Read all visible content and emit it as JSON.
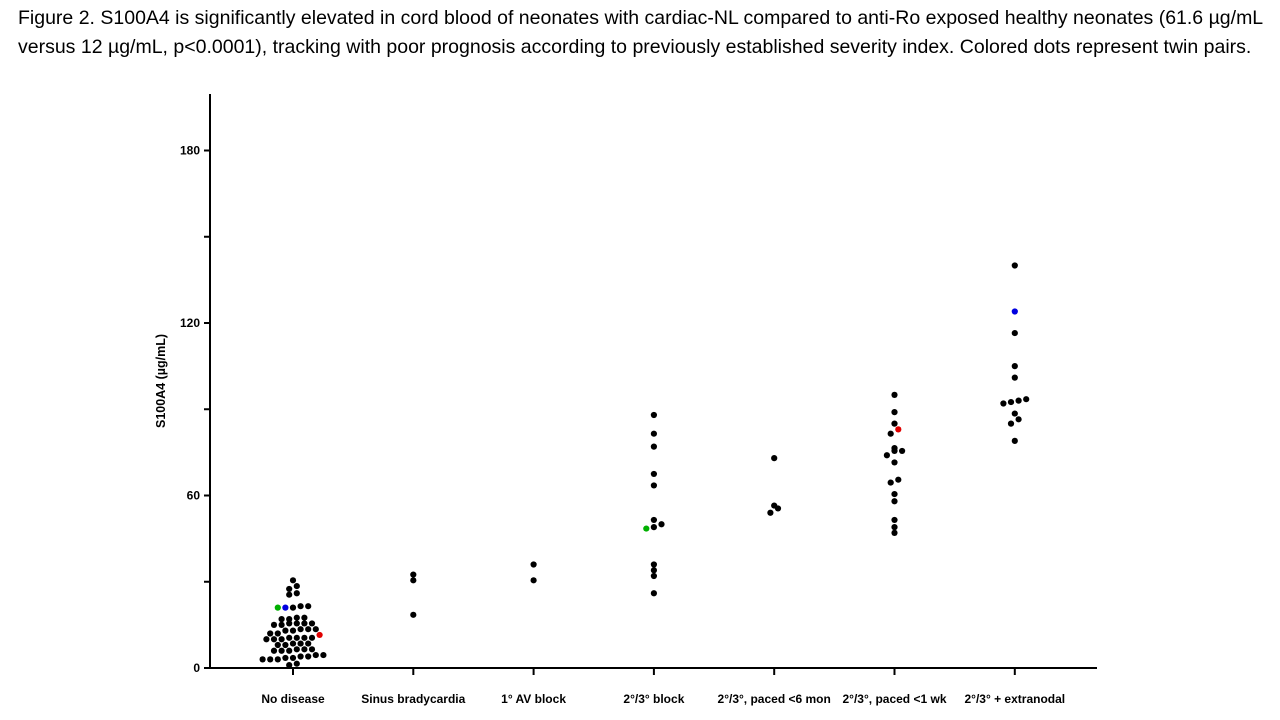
{
  "caption": "Figure 2. S100A4 is significantly elevated in cord blood of neonates with cardiac-NL compared to anti-Ro exposed healthy neonates (61.6 µg/mL versus 12 µg/mL, p<0.0001), tracking with poor prognosis according to previously established severity index. Colored dots represent twin pairs.",
  "chart_data": {
    "type": "scatter",
    "title": "",
    "xlabel": "",
    "ylabel": "S100A4 (µg/mL)",
    "ylim": [
      0,
      200
    ],
    "yticks": [
      0,
      60,
      120,
      180
    ],
    "grid": false,
    "categories": [
      "No disease",
      "Sinus bradycardia",
      "1° AV block",
      "2°/3° block",
      "2°/3°, paced <6 mon",
      "2°/3°, paced <1 wk",
      "2°/3° + extranodal"
    ],
    "colors": {
      "default": "#000000",
      "red": "#e00000",
      "green": "#00b000",
      "blue": "#0000e0"
    },
    "groups": [
      {
        "category": "No disease",
        "points": [
          {
            "y": 30.5
          },
          {
            "y": 28.5
          },
          {
            "y": 27.5
          },
          {
            "y": 26,
            "color": "#000000"
          },
          {
            "y": 25.5
          },
          {
            "y": 21.5
          },
          {
            "y": 21,
            "color": "#00b000"
          },
          {
            "y": 21,
            "color": "#0000e0"
          },
          {
            "y": 21.5
          },
          {
            "y": 21
          },
          {
            "y": 17.5
          },
          {
            "y": 17
          },
          {
            "y": 17.5
          },
          {
            "y": 17
          },
          {
            "y": 15.5
          },
          {
            "y": 15.5
          },
          {
            "y": 15.5
          },
          {
            "y": 15
          },
          {
            "y": 15.5
          },
          {
            "y": 15
          },
          {
            "y": 13.5
          },
          {
            "y": 13
          },
          {
            "y": 13.5
          },
          {
            "y": 13
          },
          {
            "y": 13.5
          },
          {
            "y": 12
          },
          {
            "y": 11.5,
            "color": "#e00000"
          },
          {
            "y": 12
          },
          {
            "y": 10.5
          },
          {
            "y": 10
          },
          {
            "y": 10.5
          },
          {
            "y": 10
          },
          {
            "y": 10.5
          },
          {
            "y": 10
          },
          {
            "y": 10.5
          },
          {
            "y": 8.5
          },
          {
            "y": 8
          },
          {
            "y": 8.5
          },
          {
            "y": 8
          },
          {
            "y": 8.5
          },
          {
            "y": 6.5
          },
          {
            "y": 6
          },
          {
            "y": 6.5
          },
          {
            "y": 6
          },
          {
            "y": 6.5
          },
          {
            "y": 6
          },
          {
            "y": 4.5
          },
          {
            "y": 4
          },
          {
            "y": 4.5
          },
          {
            "y": 4
          },
          {
            "y": 3
          },
          {
            "y": 3.5
          },
          {
            "y": 3
          },
          {
            "y": 3
          },
          {
            "y": 3.5
          },
          {
            "y": 1.5
          },
          {
            "y": 1
          }
        ]
      },
      {
        "category": "Sinus bradycardia",
        "points": [
          {
            "y": 32.5
          },
          {
            "y": 30.5
          },
          {
            "y": 18.5
          }
        ]
      },
      {
        "category": "1° AV block",
        "points": [
          {
            "y": 36
          },
          {
            "y": 30.5
          }
        ]
      },
      {
        "category": "2°/3° block",
        "points": [
          {
            "y": 88
          },
          {
            "y": 81.5
          },
          {
            "y": 77
          },
          {
            "y": 67.5
          },
          {
            "y": 63.5
          },
          {
            "y": 51.5
          },
          {
            "y": 50
          },
          {
            "y": 49
          },
          {
            "y": 48.5,
            "color": "#00b000"
          },
          {
            "y": 36
          },
          {
            "y": 34
          },
          {
            "y": 32
          },
          {
            "y": 26
          }
        ]
      },
      {
        "category": "2°/3°, paced <6 mon",
        "points": [
          {
            "y": 73
          },
          {
            "y": 56.5
          },
          {
            "y": 55.5
          },
          {
            "y": 54
          }
        ]
      },
      {
        "category": "2°/3°, paced <1 wk",
        "points": [
          {
            "y": 95
          },
          {
            "y": 89
          },
          {
            "y": 85
          },
          {
            "y": 83,
            "color": "#e00000"
          },
          {
            "y": 81.5
          },
          {
            "y": 76.5
          },
          {
            "y": 75.5
          },
          {
            "y": 75.5
          },
          {
            "y": 74
          },
          {
            "y": 71.5
          },
          {
            "y": 65.5
          },
          {
            "y": 64.5
          },
          {
            "y": 60.5
          },
          {
            "y": 58
          },
          {
            "y": 51.5
          },
          {
            "y": 49
          },
          {
            "y": 47
          }
        ]
      },
      {
        "category": "2°/3° + extranodal",
        "points": [
          {
            "y": 140
          },
          {
            "y": 124,
            "color": "#0000e0"
          },
          {
            "y": 116.5
          },
          {
            "y": 105
          },
          {
            "y": 101
          },
          {
            "y": 93.5
          },
          {
            "y": 93
          },
          {
            "y": 92
          },
          {
            "y": 92.5
          },
          {
            "y": 88.5
          },
          {
            "y": 86.5
          },
          {
            "y": 85
          },
          {
            "y": 79
          }
        ]
      }
    ]
  }
}
